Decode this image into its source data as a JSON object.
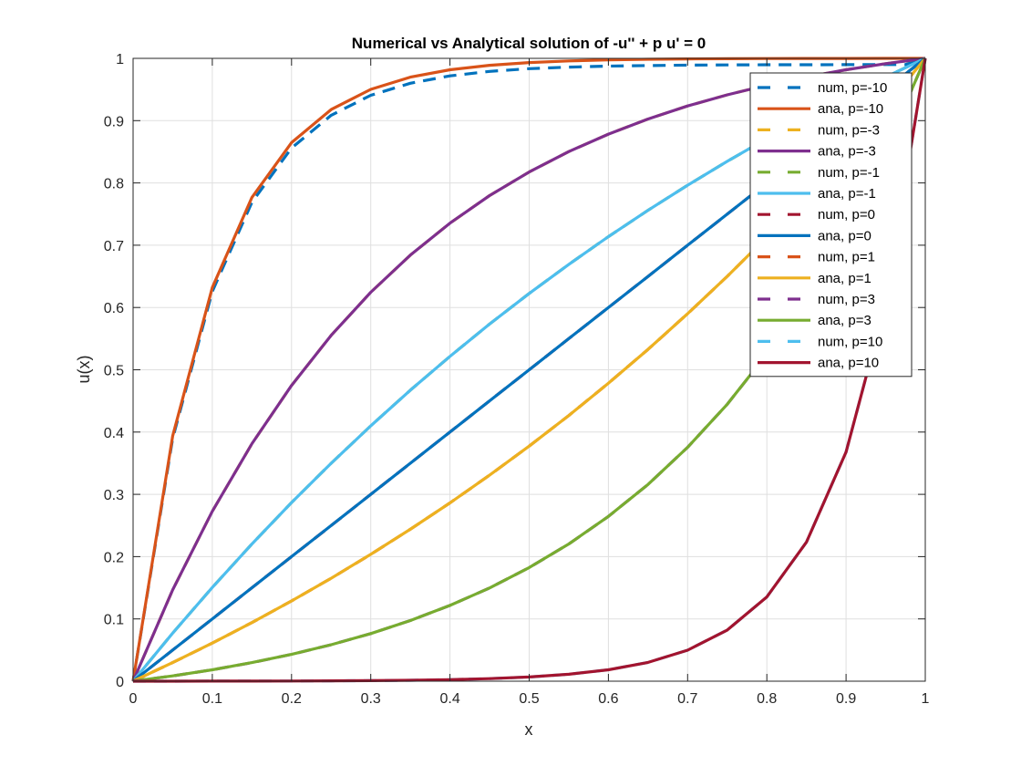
{
  "chart_data": {
    "type": "line",
    "title": "Numerical vs Analytical solution of -u'' + p u' = 0",
    "xlabel": "x",
    "ylabel": "u(x)",
    "xlim": [
      0,
      1
    ],
    "ylim": [
      0,
      1
    ],
    "grid": true,
    "legend_placement": "top-right",
    "xticks": [
      "0",
      "0.1",
      "0.2",
      "0.3",
      "0.4",
      "0.5",
      "0.6",
      "0.7",
      "0.8",
      "0.9",
      "1"
    ],
    "yticks": [
      "0",
      "0.1",
      "0.2",
      "0.3",
      "0.4",
      "0.5",
      "0.6",
      "0.7",
      "0.8",
      "0.9",
      "1"
    ],
    "x": [
      0,
      0.05,
      0.1,
      0.15,
      0.2,
      0.25,
      0.3,
      0.35,
      0.4,
      0.45,
      0.5,
      0.55,
      0.6,
      0.65,
      0.7,
      0.75,
      0.8,
      0.85,
      0.9,
      0.95,
      1
    ],
    "series": [
      {
        "name": "num, p=-10",
        "color": "#0072BD",
        "style": "dashed",
        "x": [
          0,
          0.05,
          0.1,
          0.15,
          0.2,
          0.25,
          0.3,
          0.35,
          0.4,
          0.45,
          0.5,
          0.55,
          0.6,
          0.65,
          0.7,
          0.75,
          0.8,
          0.85,
          0.9,
          0.95,
          0.975,
          1
        ],
        "values": [
          0,
          0.3896,
          0.6258,
          0.7691,
          0.8561,
          0.9087,
          0.9407,
          0.9601,
          0.9719,
          0.979,
          0.9834,
          0.9859,
          0.9875,
          0.9885,
          0.9891,
          0.9894,
          0.9897,
          0.9898,
          0.9899,
          0.99,
          0.99,
          1
        ]
      },
      {
        "name": "ana, p=-10",
        "color": "#D95319",
        "style": "solid",
        "values": [
          0,
          0.3935,
          0.6321,
          0.7769,
          0.8647,
          0.9179,
          0.9502,
          0.9698,
          0.9817,
          0.9889,
          0.9933,
          0.9959,
          0.9975,
          0.9985,
          0.9991,
          0.9994,
          0.9997,
          0.9998,
          0.9999,
          1,
          1
        ]
      },
      {
        "name": "num, p=-3",
        "color": "#EDB120",
        "style": "dashed",
        "values": [
          0,
          0.1466,
          0.2728,
          0.3814,
          0.4748,
          0.5553,
          0.6245,
          0.6841,
          0.7354,
          0.7796,
          0.8176,
          0.8503,
          0.8784,
          0.9027,
          0.9235,
          0.9415,
          0.9569,
          0.9702,
          0.9817,
          0.9915,
          1
        ]
      },
      {
        "name": "ana, p=-3",
        "color": "#7E2F8E",
        "style": "solid",
        "values": [
          0,
          0.1466,
          0.2728,
          0.3814,
          0.4748,
          0.5553,
          0.6245,
          0.6841,
          0.7354,
          0.7796,
          0.8176,
          0.8503,
          0.8784,
          0.9027,
          0.9235,
          0.9415,
          0.9569,
          0.9702,
          0.9817,
          0.9915,
          1
        ]
      },
      {
        "name": "num, p=-1",
        "color": "#77AC30",
        "style": "dashed",
        "values": [
          0,
          0.0772,
          0.1505,
          0.2204,
          0.2868,
          0.3499,
          0.41,
          0.4672,
          0.5215,
          0.5733,
          0.6225,
          0.6693,
          0.7138,
          0.7561,
          0.7964,
          0.8347,
          0.8711,
          0.9058,
          0.9388,
          0.9702,
          1
        ]
      },
      {
        "name": "ana, p=-1",
        "color": "#4DBEEE",
        "style": "solid",
        "values": [
          0,
          0.0772,
          0.1505,
          0.2204,
          0.2868,
          0.3499,
          0.41,
          0.4672,
          0.5215,
          0.5733,
          0.6225,
          0.6693,
          0.7138,
          0.7561,
          0.7964,
          0.8347,
          0.8711,
          0.9058,
          0.9388,
          0.9702,
          1
        ]
      },
      {
        "name": "num, p=0",
        "color": "#A2142F",
        "style": "dashed",
        "values": [
          0,
          0.05,
          0.1,
          0.15,
          0.2,
          0.25,
          0.3,
          0.35,
          0.4,
          0.45,
          0.5,
          0.55,
          0.6,
          0.65,
          0.7,
          0.75,
          0.8,
          0.85,
          0.9,
          0.95,
          1
        ]
      },
      {
        "name": "ana, p=0",
        "color": "#0072BD",
        "style": "solid",
        "values": [
          0,
          0.05,
          0.1,
          0.15,
          0.2,
          0.25,
          0.3,
          0.35,
          0.4,
          0.45,
          0.5,
          0.55,
          0.6,
          0.65,
          0.7,
          0.75,
          0.8,
          0.85,
          0.9,
          0.95,
          1
        ]
      },
      {
        "name": "num, p=1",
        "color": "#D95319",
        "style": "dashed",
        "values": [
          0,
          0.0298,
          0.0612,
          0.0942,
          0.1289,
          0.1653,
          0.2036,
          0.2439,
          0.2862,
          0.3307,
          0.3775,
          0.4267,
          0.4785,
          0.5328,
          0.59,
          0.6501,
          0.7132,
          0.7796,
          0.8495,
          0.9228,
          1
        ]
      },
      {
        "name": "ana, p=1",
        "color": "#EDB120",
        "style": "solid",
        "values": [
          0,
          0.0298,
          0.0612,
          0.0942,
          0.1289,
          0.1653,
          0.2036,
          0.2439,
          0.2862,
          0.3307,
          0.3775,
          0.4267,
          0.4785,
          0.5328,
          0.59,
          0.6501,
          0.7132,
          0.7796,
          0.8495,
          0.9228,
          1
        ]
      },
      {
        "name": "num, p=3",
        "color": "#7E2F8E",
        "style": "dashed",
        "values": [
          0,
          0.0085,
          0.0183,
          0.0298,
          0.0431,
          0.0585,
          0.0765,
          0.0973,
          0.1216,
          0.1497,
          0.1824,
          0.2204,
          0.2646,
          0.3159,
          0.3755,
          0.4447,
          0.5252,
          0.6186,
          0.7272,
          0.8534,
          1
        ]
      },
      {
        "name": "ana, p=3",
        "color": "#77AC30",
        "style": "solid",
        "values": [
          0,
          0.0085,
          0.0183,
          0.0298,
          0.0431,
          0.0585,
          0.0765,
          0.0973,
          0.1216,
          0.1497,
          0.1824,
          0.2204,
          0.2646,
          0.3159,
          0.3755,
          0.4447,
          0.5252,
          0.6186,
          0.7272,
          0.8534,
          1
        ]
      },
      {
        "name": "num, p=10",
        "color": "#4DBEEE",
        "style": "dashed",
        "values": [
          0,
          0,
          0.0001,
          0.0002,
          0.0003,
          0.0006,
          0.0009,
          0.0015,
          0.0025,
          0.0041,
          0.0067,
          0.0111,
          0.0183,
          0.0302,
          0.0498,
          0.0821,
          0.1353,
          0.2231,
          0.3679,
          0.6065,
          1
        ]
      },
      {
        "name": "ana, p=10",
        "color": "#A2142F",
        "style": "solid",
        "values": [
          0,
          0,
          0.0001,
          0.0002,
          0.0003,
          0.0006,
          0.0009,
          0.0015,
          0.0025,
          0.0041,
          0.0067,
          0.0111,
          0.0183,
          0.0302,
          0.0498,
          0.0821,
          0.1353,
          0.2231,
          0.3679,
          0.6065,
          1
        ]
      }
    ]
  }
}
